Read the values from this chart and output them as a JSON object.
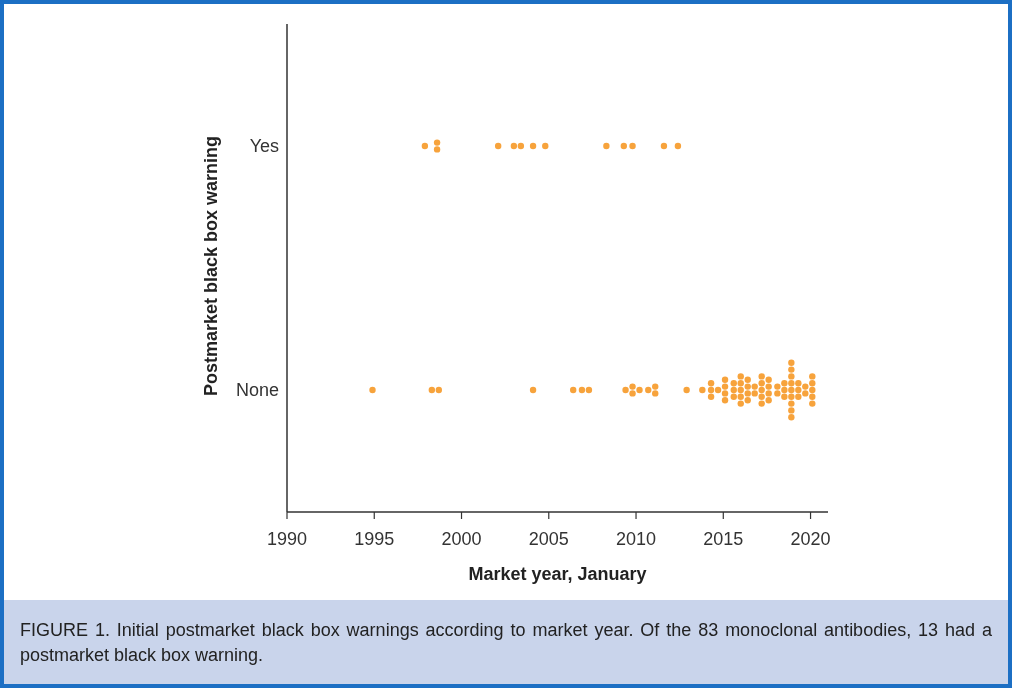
{
  "chart_data": {
    "type": "scatter",
    "orientation": "horizontal",
    "xlabel": "Market year, January",
    "ylabel": "Postmarket black box warning",
    "categories": [
      "Yes",
      "None"
    ],
    "xlim": [
      1990,
      2021
    ],
    "xticks": [
      1990,
      1995,
      2000,
      2005,
      2010,
      2015,
      2020
    ],
    "grid": false,
    "marker": "circle",
    "series": [
      {
        "color": "#f7a33c",
        "x": [
          "Yes",
          "Yes",
          "Yes",
          "Yes",
          "Yes",
          "Yes",
          "Yes",
          "Yes",
          "Yes",
          "Yes",
          "Yes",
          "Yes",
          "Yes"
        ],
        "values": [
          1997.9,
          1998.6,
          1998.6,
          2002.1,
          2003.0,
          2003.4,
          2004.1,
          2004.8,
          2008.3,
          2009.3,
          2009.8,
          2011.6,
          2012.4
        ]
      },
      {
        "color": "#f7a33c",
        "x": [
          "None",
          "None",
          "None",
          "None",
          "None",
          "None",
          "None",
          "None",
          "None",
          "None",
          "None",
          "None",
          "None",
          "None",
          "None",
          "None",
          "None",
          "None",
          "None",
          "None",
          "None",
          "None",
          "None",
          "None",
          "None",
          "None",
          "None",
          "None",
          "None",
          "None",
          "None",
          "None",
          "None",
          "None",
          "None",
          "None",
          "None",
          "None",
          "None",
          "None",
          "None",
          "None",
          "None",
          "None",
          "None",
          "None",
          "None",
          "None",
          "None",
          "None",
          "None",
          "None",
          "None",
          "None",
          "None",
          "None",
          "None",
          "None",
          "None",
          "None",
          "None",
          "None",
          "None",
          "None",
          "None",
          "None",
          "None",
          "None",
          "None",
          "None",
          "None"
        ],
        "values": [
          1994.9,
          1998.3,
          1998.7,
          2004.1,
          2006.4,
          2006.9,
          2007.3,
          2009.4,
          2009.8,
          2009.8,
          2010.2,
          2010.7,
          2011.1,
          2011.1,
          2012.9,
          2013.8,
          2014.3,
          2014.3,
          2014.3,
          2014.7,
          2015.1,
          2015.1,
          2015.1,
          2015.1,
          2015.6,
          2015.6,
          2015.6,
          2016.0,
          2016.0,
          2016.0,
          2016.0,
          2016.0,
          2016.4,
          2016.4,
          2016.4,
          2016.4,
          2016.8,
          2016.8,
          2017.2,
          2017.2,
          2017.2,
          2017.2,
          2017.2,
          2017.6,
          2017.6,
          2017.6,
          2017.6,
          2018.1,
          2018.1,
          2018.5,
          2018.5,
          2018.5,
          2018.9,
          2018.9,
          2018.9,
          2018.9,
          2018.9,
          2018.9,
          2018.9,
          2018.9,
          2018.9,
          2019.3,
          2019.3,
          2019.3,
          2019.7,
          2019.7,
          2020.1,
          2020.1,
          2020.1,
          2020.1,
          2020.1
        ]
      }
    ],
    "annotations": [
      "FIGURE 1. Initial postmarket black box warnings according to market year. Of the 83 monoclonal antibodies, 13 had a postmarket black box warning."
    ]
  }
}
